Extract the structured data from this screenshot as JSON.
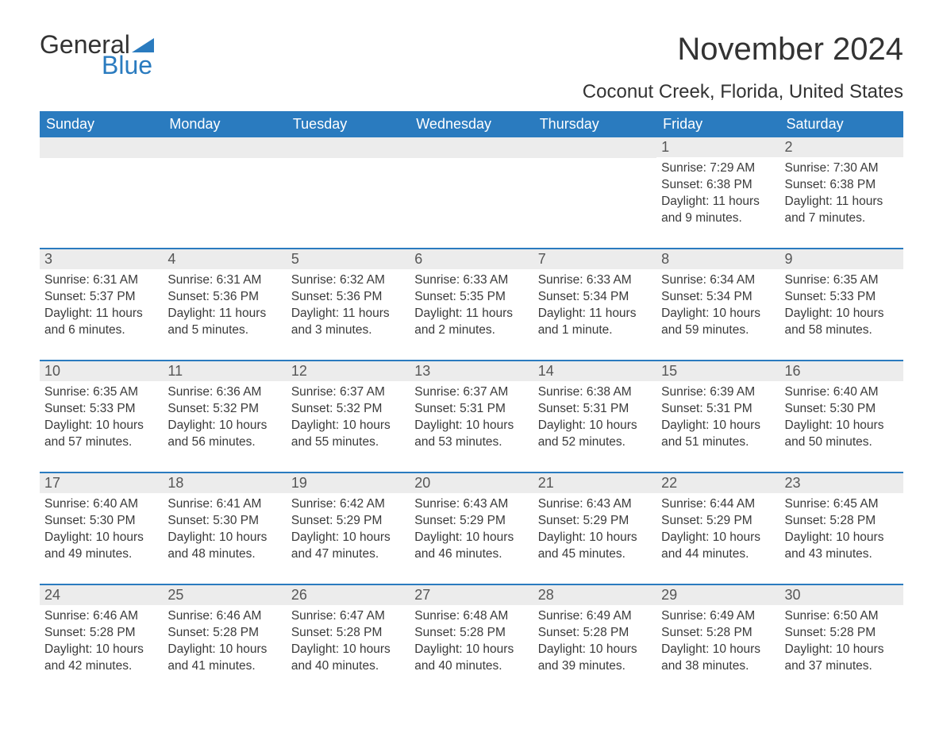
{
  "logo": {
    "text1": "General",
    "text2": "Blue",
    "flag_color": "#2a7bbf"
  },
  "title": "November 2024",
  "subtitle": "Coconut Creek, Florida, United States",
  "colors": {
    "header_bg": "#2a7bbf",
    "header_text": "#ffffff",
    "daynum_bg": "#ececec",
    "daynum_text": "#565656",
    "body_text": "#3a3a3a",
    "rule": "#2a7bbf",
    "page_bg": "#ffffff"
  },
  "day_names": [
    "Sunday",
    "Monday",
    "Tuesday",
    "Wednesday",
    "Thursday",
    "Friday",
    "Saturday"
  ],
  "weeks": [
    [
      {
        "blank": true
      },
      {
        "blank": true
      },
      {
        "blank": true
      },
      {
        "blank": true
      },
      {
        "blank": true
      },
      {
        "n": "1",
        "sunrise": "7:29 AM",
        "sunset": "6:38 PM",
        "daylight": "11 hours and 9 minutes."
      },
      {
        "n": "2",
        "sunrise": "7:30 AM",
        "sunset": "6:38 PM",
        "daylight": "11 hours and 7 minutes."
      }
    ],
    [
      {
        "n": "3",
        "sunrise": "6:31 AM",
        "sunset": "5:37 PM",
        "daylight": "11 hours and 6 minutes."
      },
      {
        "n": "4",
        "sunrise": "6:31 AM",
        "sunset": "5:36 PM",
        "daylight": "11 hours and 5 minutes."
      },
      {
        "n": "5",
        "sunrise": "6:32 AM",
        "sunset": "5:36 PM",
        "daylight": "11 hours and 3 minutes."
      },
      {
        "n": "6",
        "sunrise": "6:33 AM",
        "sunset": "5:35 PM",
        "daylight": "11 hours and 2 minutes."
      },
      {
        "n": "7",
        "sunrise": "6:33 AM",
        "sunset": "5:34 PM",
        "daylight": "11 hours and 1 minute."
      },
      {
        "n": "8",
        "sunrise": "6:34 AM",
        "sunset": "5:34 PM",
        "daylight": "10 hours and 59 minutes."
      },
      {
        "n": "9",
        "sunrise": "6:35 AM",
        "sunset": "5:33 PM",
        "daylight": "10 hours and 58 minutes."
      }
    ],
    [
      {
        "n": "10",
        "sunrise": "6:35 AM",
        "sunset": "5:33 PM",
        "daylight": "10 hours and 57 minutes."
      },
      {
        "n": "11",
        "sunrise": "6:36 AM",
        "sunset": "5:32 PM",
        "daylight": "10 hours and 56 minutes."
      },
      {
        "n": "12",
        "sunrise": "6:37 AM",
        "sunset": "5:32 PM",
        "daylight": "10 hours and 55 minutes."
      },
      {
        "n": "13",
        "sunrise": "6:37 AM",
        "sunset": "5:31 PM",
        "daylight": "10 hours and 53 minutes."
      },
      {
        "n": "14",
        "sunrise": "6:38 AM",
        "sunset": "5:31 PM",
        "daylight": "10 hours and 52 minutes."
      },
      {
        "n": "15",
        "sunrise": "6:39 AM",
        "sunset": "5:31 PM",
        "daylight": "10 hours and 51 minutes."
      },
      {
        "n": "16",
        "sunrise": "6:40 AM",
        "sunset": "5:30 PM",
        "daylight": "10 hours and 50 minutes."
      }
    ],
    [
      {
        "n": "17",
        "sunrise": "6:40 AM",
        "sunset": "5:30 PM",
        "daylight": "10 hours and 49 minutes."
      },
      {
        "n": "18",
        "sunrise": "6:41 AM",
        "sunset": "5:30 PM",
        "daylight": "10 hours and 48 minutes."
      },
      {
        "n": "19",
        "sunrise": "6:42 AM",
        "sunset": "5:29 PM",
        "daylight": "10 hours and 47 minutes."
      },
      {
        "n": "20",
        "sunrise": "6:43 AM",
        "sunset": "5:29 PM",
        "daylight": "10 hours and 46 minutes."
      },
      {
        "n": "21",
        "sunrise": "6:43 AM",
        "sunset": "5:29 PM",
        "daylight": "10 hours and 45 minutes."
      },
      {
        "n": "22",
        "sunrise": "6:44 AM",
        "sunset": "5:29 PM",
        "daylight": "10 hours and 44 minutes."
      },
      {
        "n": "23",
        "sunrise": "6:45 AM",
        "sunset": "5:28 PM",
        "daylight": "10 hours and 43 minutes."
      }
    ],
    [
      {
        "n": "24",
        "sunrise": "6:46 AM",
        "sunset": "5:28 PM",
        "daylight": "10 hours and 42 minutes."
      },
      {
        "n": "25",
        "sunrise": "6:46 AM",
        "sunset": "5:28 PM",
        "daylight": "10 hours and 41 minutes."
      },
      {
        "n": "26",
        "sunrise": "6:47 AM",
        "sunset": "5:28 PM",
        "daylight": "10 hours and 40 minutes."
      },
      {
        "n": "27",
        "sunrise": "6:48 AM",
        "sunset": "5:28 PM",
        "daylight": "10 hours and 40 minutes."
      },
      {
        "n": "28",
        "sunrise": "6:49 AM",
        "sunset": "5:28 PM",
        "daylight": "10 hours and 39 minutes."
      },
      {
        "n": "29",
        "sunrise": "6:49 AM",
        "sunset": "5:28 PM",
        "daylight": "10 hours and 38 minutes."
      },
      {
        "n": "30",
        "sunrise": "6:50 AM",
        "sunset": "5:28 PM",
        "daylight": "10 hours and 37 minutes."
      }
    ]
  ],
  "labels": {
    "sunrise": "Sunrise: ",
    "sunset": "Sunset: ",
    "daylight": "Daylight: "
  }
}
